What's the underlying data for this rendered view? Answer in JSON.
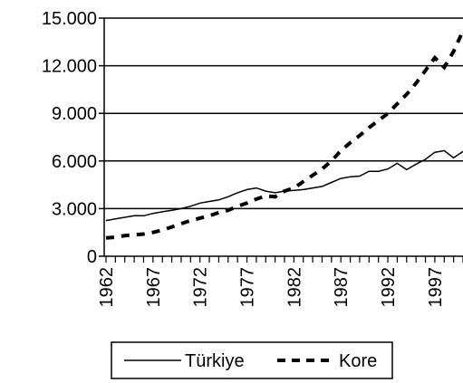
{
  "chart_data": {
    "type": "line",
    "title": "",
    "xlabel": "",
    "ylabel": "",
    "x": [
      1962,
      1963,
      1964,
      1965,
      1966,
      1967,
      1968,
      1969,
      1970,
      1971,
      1972,
      1973,
      1974,
      1975,
      1976,
      1977,
      1978,
      1979,
      1980,
      1981,
      1982,
      1983,
      1984,
      1985,
      1986,
      1987,
      1988,
      1989,
      1990,
      1991,
      1992,
      1993,
      1994,
      1995,
      1996,
      1997,
      1998,
      1999,
      2000
    ],
    "xlim": [
      1962,
      2000
    ],
    "ylim": [
      0,
      15000
    ],
    "yticks": [
      0,
      3000,
      6000,
      9000,
      12000,
      15000
    ],
    "ytick_labels": [
      "0",
      "3.000",
      "6.000",
      "9.000",
      "12.000",
      "15.000"
    ],
    "xtick_values": [
      1962,
      1967,
      1972,
      1977,
      1982,
      1987,
      1992,
      1997
    ],
    "xtick_labels": [
      "1962",
      "1967",
      "1972",
      "1977",
      "1982",
      "1987",
      "1992",
      "1997"
    ],
    "grid": "horizontal",
    "legend_position": "bottom",
    "series": [
      {
        "name": "Türkiye",
        "style": "solid",
        "color": "#000000",
        "values": [
          2250,
          2350,
          2450,
          2550,
          2550,
          2700,
          2800,
          2900,
          3000,
          3150,
          3350,
          3450,
          3550,
          3750,
          4000,
          4200,
          4300,
          4100,
          4000,
          4100,
          4150,
          4200,
          4300,
          4400,
          4650,
          4900,
          5000,
          5050,
          5350,
          5350,
          5500,
          5850,
          5450,
          5800,
          6100,
          6550,
          6650,
          6200,
          6600
        ]
      },
      {
        "name": "Kore",
        "style": "dashed",
        "color": "#000000",
        "values": [
          1150,
          1200,
          1300,
          1350,
          1400,
          1500,
          1650,
          1850,
          2050,
          2250,
          2400,
          2550,
          2750,
          2900,
          3150,
          3350,
          3600,
          3800,
          3750,
          4100,
          4300,
          4700,
          5100,
          5500,
          6000,
          6650,
          7150,
          7600,
          8100,
          8550,
          9000,
          9600,
          10200,
          10900,
          11700,
          12500,
          11900,
          12900,
          14200
        ]
      }
    ]
  }
}
